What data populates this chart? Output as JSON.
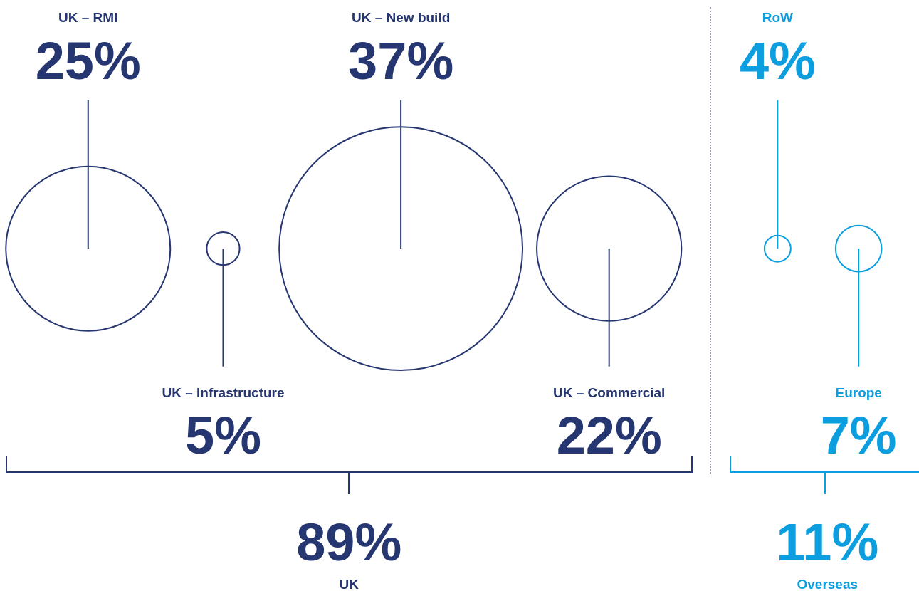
{
  "chart_data": {
    "type": "other",
    "categories": [
      "UK – RMI",
      "UK – Infrastructure",
      "UK – New build",
      "UK – Commercial",
      "RoW",
      "Europe"
    ],
    "values": [
      25,
      5,
      37,
      22,
      4,
      7
    ],
    "value_labels": [
      "25%",
      "5%",
      "37%",
      "22%",
      "4%",
      "7%"
    ],
    "colors": [
      "#263670",
      "#263670",
      "#263670",
      "#263670",
      "#0d9ee0",
      "#0d9ee0"
    ],
    "annotations": [
      "89%",
      "UK",
      "11%",
      "Overseas"
    ]
  }
}
